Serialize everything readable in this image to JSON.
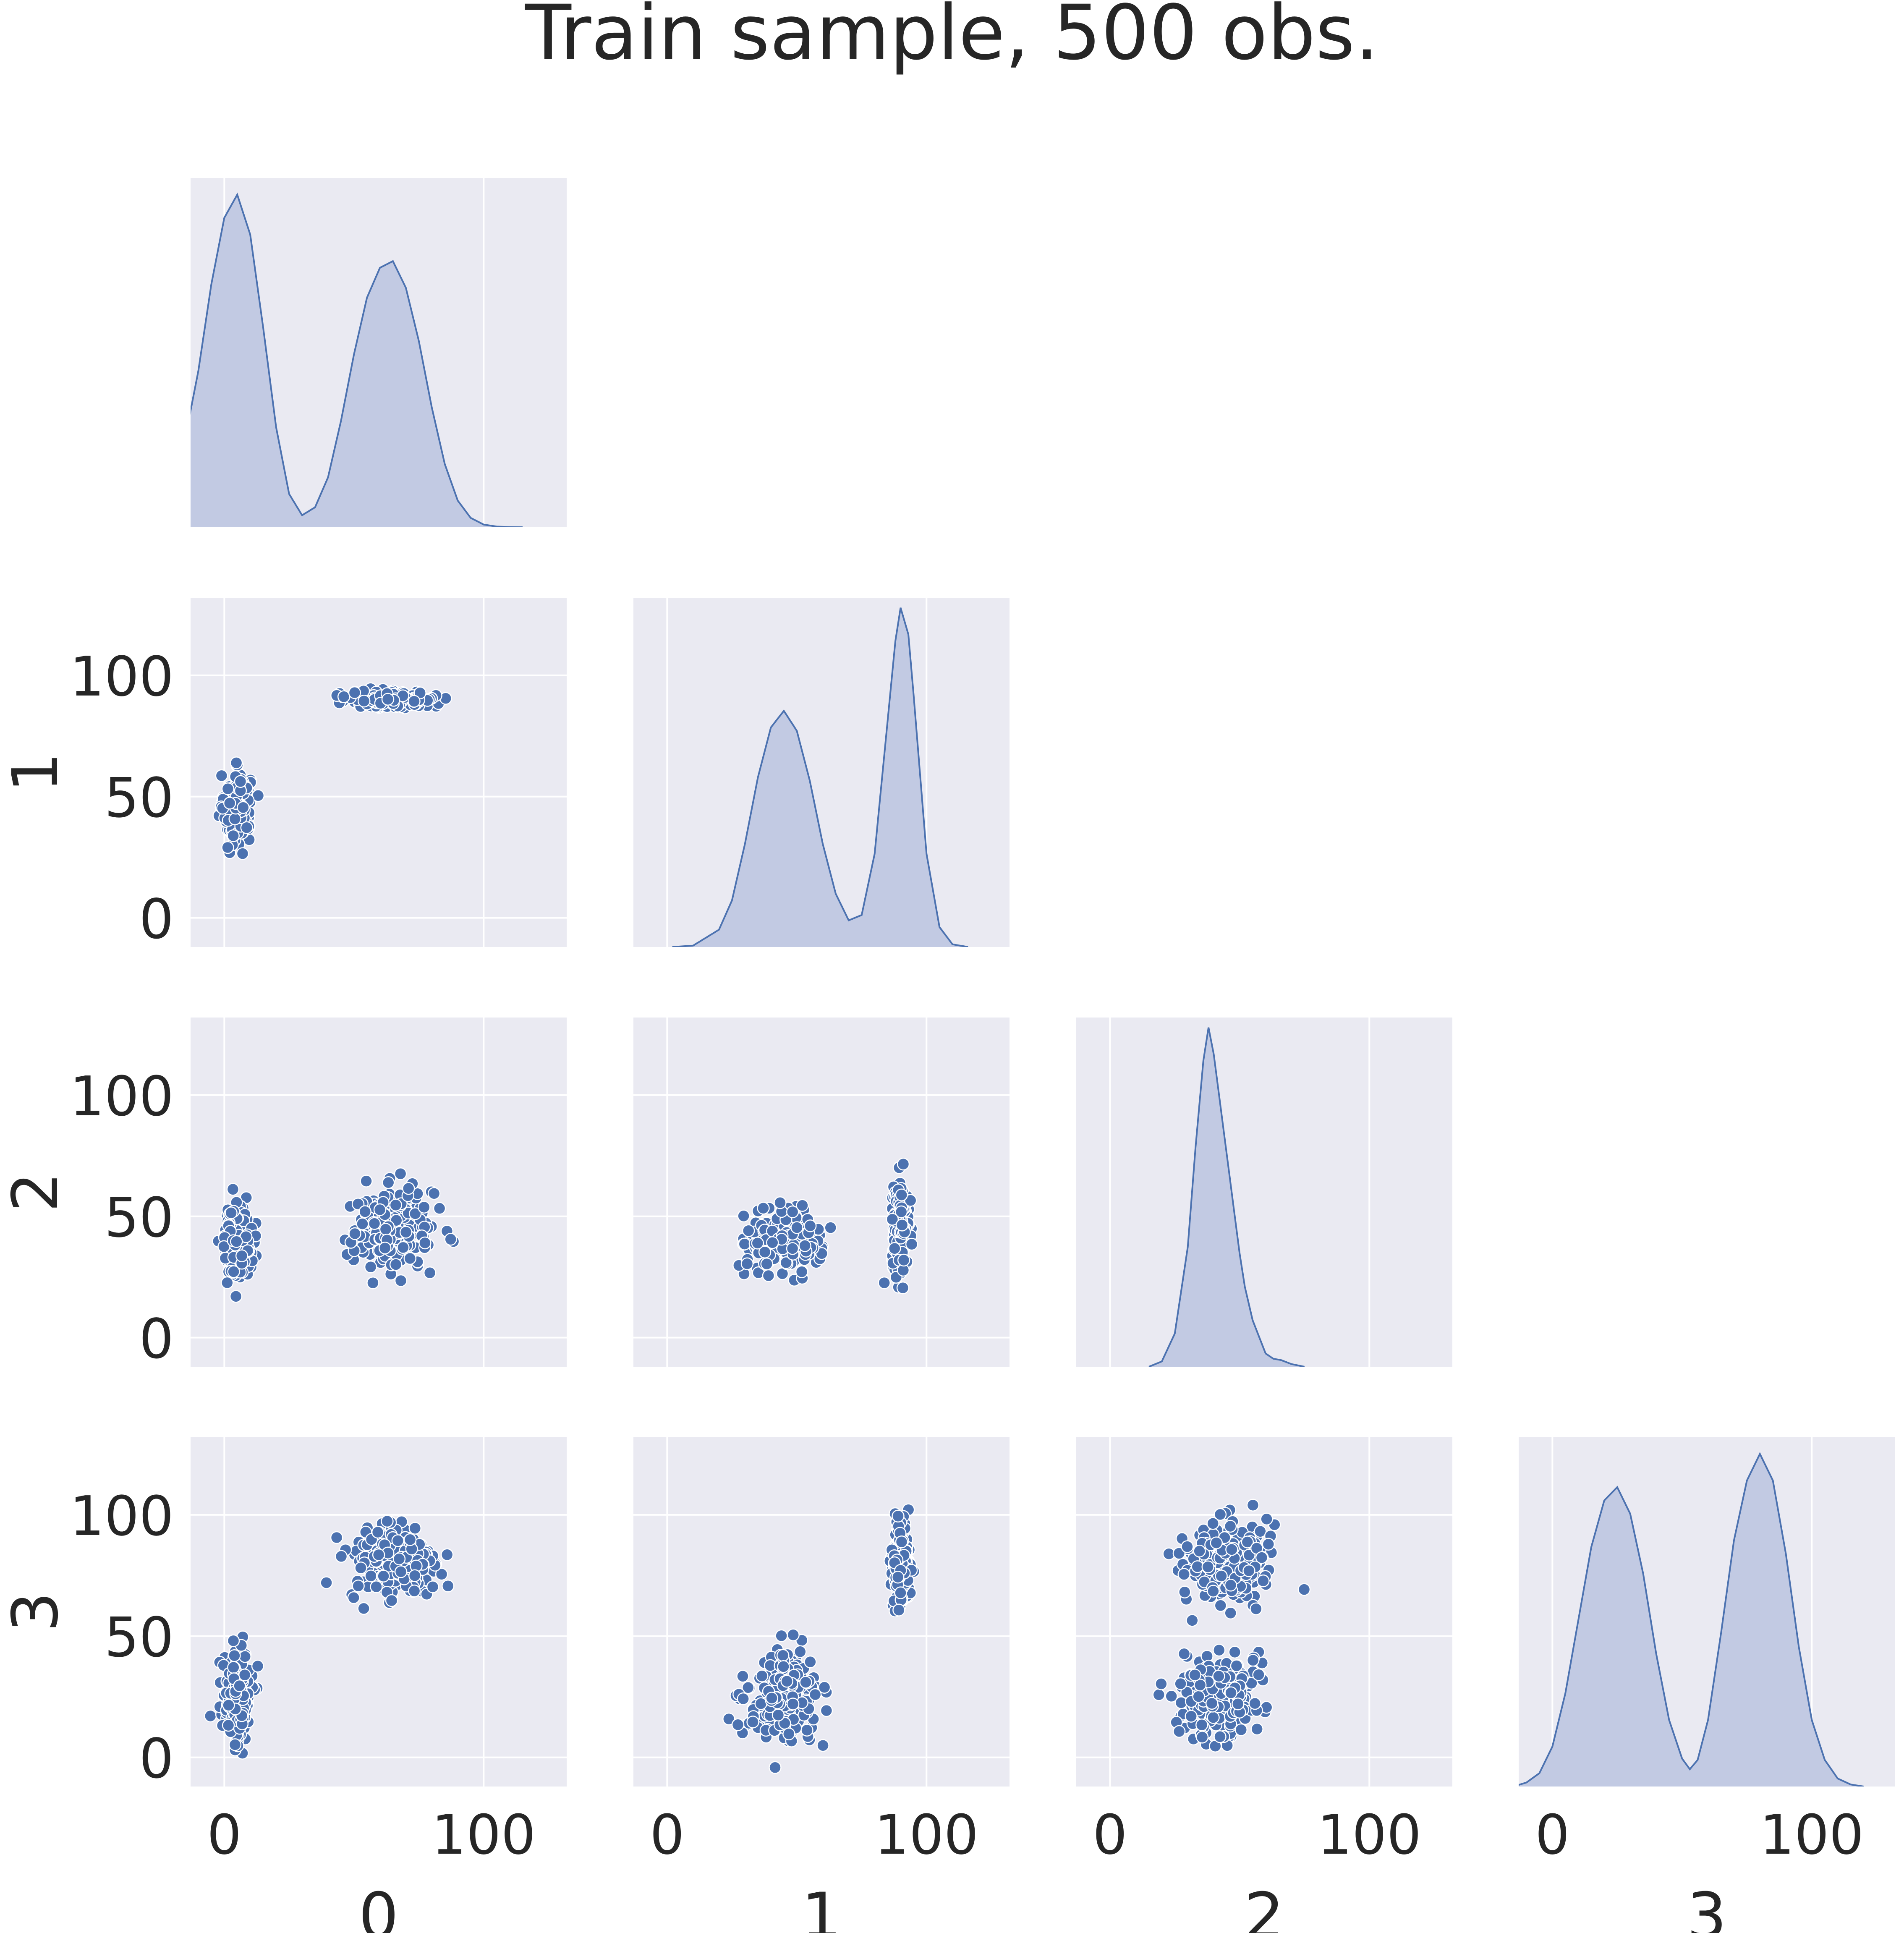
{
  "figure": {
    "title": "Train sample, 500 obs.",
    "colors": {
      "panel_bg": "#eaeaf2",
      "grid": "#ffffff",
      "series": "#4c72b0",
      "kde_fill": "#c2cae3",
      "text": "#262626"
    }
  },
  "chart_data": [
    {
      "id": "kde-0",
      "type": "area",
      "description_var": "0",
      "row": 0,
      "col": 0,
      "x": [
        -15,
        -10,
        -5,
        0,
        5,
        10,
        15,
        20,
        25,
        30,
        35,
        40,
        45,
        50,
        55,
        60,
        65,
        70,
        75,
        80,
        85,
        90,
        95,
        100,
        105,
        110,
        115
      ],
      "y": [
        0.0135,
        0.0235,
        0.0365,
        0.0465,
        0.05,
        0.044,
        0.03,
        0.015,
        0.005,
        0.0018,
        0.003,
        0.0075,
        0.016,
        0.026,
        0.0345,
        0.039,
        0.04,
        0.036,
        0.028,
        0.018,
        0.0095,
        0.004,
        0.0014,
        0.0004,
        0.0001,
        3e-05,
        0.0
      ],
      "xlim": [
        -13,
        132
      ],
      "ylim": [
        0,
        0.0525
      ],
      "x_ticks": [
        0,
        100
      ]
    },
    {
      "id": "scatter-1-0",
      "type": "scatter",
      "row": 1,
      "col": 0,
      "xlabel": "",
      "ylabel": "1",
      "clusters": [
        {
          "cx": 5,
          "cy": 45,
          "sx": 2.5,
          "sy": 7,
          "n": 250
        },
        {
          "cx": 65,
          "cy": 90,
          "sx": 8,
          "sy": 1.6,
          "n": 250
        }
      ],
      "xlim": [
        -13,
        132
      ],
      "ylim": [
        -12,
        132
      ],
      "x_ticks": [
        0,
        100
      ],
      "y_ticks": [
        0,
        50,
        100
      ],
      "y_tick_labels": [
        "0",
        "50",
        "100"
      ]
    },
    {
      "id": "kde-1",
      "type": "area",
      "description_var": "1",
      "row": 1,
      "col": 1,
      "x": [
        2,
        10,
        20,
        25,
        30,
        35,
        40,
        45,
        50,
        55,
        60,
        65,
        70,
        75,
        80,
        85,
        88,
        90,
        93,
        95,
        100,
        105,
        110,
        116
      ],
      "y": [
        0.0,
        0.0002,
        0.0026,
        0.007,
        0.0155,
        0.0255,
        0.033,
        0.0355,
        0.0325,
        0.025,
        0.0155,
        0.008,
        0.004,
        0.0048,
        0.014,
        0.034,
        0.046,
        0.051,
        0.047,
        0.038,
        0.014,
        0.003,
        0.0004,
        0.0
      ],
      "xlim": [
        -13,
        132
      ],
      "ylim": [
        0,
        0.0525
      ],
      "x_ticks": [
        0,
        100
      ]
    },
    {
      "id": "scatter-2-0",
      "type": "scatter",
      "row": 2,
      "col": 0,
      "xlabel": "",
      "ylabel": "2",
      "clusters": [
        {
          "cx": 5,
          "cy": 40,
          "sx": 2.5,
          "sy": 7,
          "n": 250
        },
        {
          "cx": 65,
          "cy": 45,
          "sx": 8,
          "sy": 8,
          "n": 250
        }
      ],
      "xlim": [
        -13,
        132
      ],
      "ylim": [
        -12,
        132
      ],
      "x_ticks": [
        0,
        100
      ],
      "y_ticks": [
        0,
        50,
        100
      ],
      "y_tick_labels": [
        "0",
        "50",
        "100"
      ]
    },
    {
      "id": "scatter-2-1",
      "type": "scatter",
      "row": 2,
      "col": 1,
      "clusters": [
        {
          "cx": 45,
          "cy": 40,
          "sx": 7,
          "sy": 6,
          "n": 250
        },
        {
          "cx": 90,
          "cy": 45,
          "sx": 1.6,
          "sy": 8,
          "n": 250
        }
      ],
      "xlim": [
        -13,
        132
      ],
      "ylim": [
        -12,
        132
      ],
      "x_ticks": [
        0,
        100
      ],
      "y_ticks": [
        0,
        50,
        100
      ]
    },
    {
      "id": "kde-2",
      "type": "area",
      "description_var": "2",
      "row": 2,
      "col": 2,
      "x": [
        15,
        20,
        25,
        30,
        33,
        36,
        38,
        40,
        42,
        44,
        46,
        48,
        50,
        52,
        55,
        58,
        60,
        63,
        66,
        70,
        75
      ],
      "y": [
        0.0,
        0.0008,
        0.005,
        0.018,
        0.033,
        0.046,
        0.051,
        0.047,
        0.041,
        0.035,
        0.029,
        0.023,
        0.017,
        0.012,
        0.007,
        0.004,
        0.002,
        0.0012,
        0.001,
        0.0004,
        0.0
      ],
      "xlim": [
        -13,
        132
      ],
      "ylim": [
        0,
        0.0525
      ],
      "x_ticks": [
        0,
        100
      ]
    },
    {
      "id": "scatter-3-0",
      "type": "scatter",
      "row": 3,
      "col": 0,
      "xlabel": "0",
      "ylabel": "3",
      "clusters": [
        {
          "cx": 5,
          "cy": 25,
          "sx": 2.5,
          "sy": 9,
          "n": 250
        },
        {
          "cx": 65,
          "cy": 80,
          "sx": 8,
          "sy": 8,
          "n": 250
        }
      ],
      "xlim": [
        -13,
        132
      ],
      "ylim": [
        -12,
        132
      ],
      "x_ticks": [
        0,
        100
      ],
      "y_ticks": [
        0,
        50,
        100
      ],
      "x_tick_labels": [
        "0",
        "100"
      ],
      "y_tick_labels": [
        "0",
        "50",
        "100"
      ]
    },
    {
      "id": "scatter-3-1",
      "type": "scatter",
      "row": 3,
      "col": 1,
      "xlabel": "1",
      "clusters": [
        {
          "cx": 45,
          "cy": 25,
          "sx": 7,
          "sy": 9,
          "n": 250
        },
        {
          "cx": 90,
          "cy": 80,
          "sx": 1.6,
          "sy": 8,
          "n": 250
        }
      ],
      "xlim": [
        -13,
        132
      ],
      "ylim": [
        -12,
        132
      ],
      "x_ticks": [
        0,
        100
      ],
      "y_ticks": [
        0,
        50,
        100
      ],
      "x_tick_labels": [
        "0",
        "100"
      ]
    },
    {
      "id": "scatter-3-2",
      "type": "scatter",
      "row": 3,
      "col": 2,
      "xlabel": "2",
      "clusters": [
        {
          "cx": 42,
          "cy": 25,
          "sx": 7,
          "sy": 9,
          "n": 250
        },
        {
          "cx": 45,
          "cy": 80,
          "sx": 8,
          "sy": 8,
          "n": 250
        }
      ],
      "xlim": [
        -13,
        132
      ],
      "ylim": [
        -12,
        132
      ],
      "x_ticks": [
        0,
        100
      ],
      "y_ticks": [
        0,
        50,
        100
      ],
      "x_tick_labels": [
        "0",
        "100"
      ]
    },
    {
      "id": "kde-3",
      "type": "area",
      "description_var": "3",
      "row": 3,
      "col": 3,
      "xlabel": "3",
      "x": [
        -15,
        -10,
        -5,
        0,
        5,
        10,
        15,
        20,
        25,
        30,
        35,
        40,
        45,
        50,
        53,
        56,
        60,
        65,
        70,
        75,
        80,
        85,
        90,
        95,
        100,
        105,
        110,
        115,
        120
      ],
      "y": [
        0.0,
        0.0006,
        0.002,
        0.006,
        0.014,
        0.025,
        0.036,
        0.043,
        0.045,
        0.041,
        0.032,
        0.02,
        0.01,
        0.0042,
        0.0026,
        0.004,
        0.01,
        0.023,
        0.037,
        0.046,
        0.05,
        0.046,
        0.035,
        0.021,
        0.01,
        0.004,
        0.0012,
        0.0003,
        0.0
      ],
      "xlim": [
        -13,
        132
      ],
      "ylim": [
        0,
        0.0525
      ],
      "x_ticks": [
        0,
        100
      ],
      "x_tick_labels": [
        "0",
        "100"
      ]
    }
  ]
}
